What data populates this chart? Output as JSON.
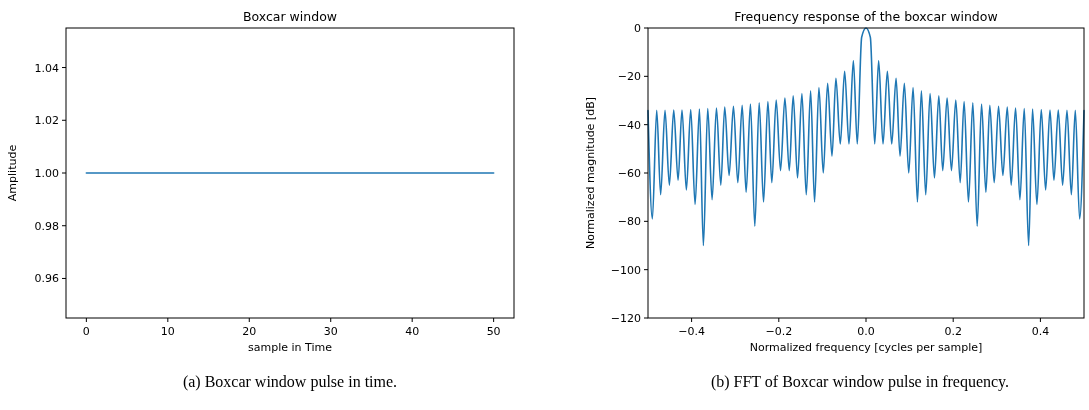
{
  "chart_data": [
    {
      "type": "line",
      "title": "Boxcar window",
      "xlabel": "sample in Time",
      "ylabel": "Amplitude",
      "annotations": [
        "(a) Boxcar window pulse in time."
      ],
      "x": [
        0,
        1,
        2,
        3,
        4,
        5,
        6,
        7,
        8,
        9,
        10,
        11,
        12,
        13,
        14,
        15,
        16,
        17,
        18,
        19,
        20,
        21,
        22,
        23,
        24,
        25,
        26,
        27,
        28,
        29,
        30,
        31,
        32,
        33,
        34,
        35,
        36,
        37,
        38,
        39,
        40,
        41,
        42,
        43,
        44,
        45,
        46,
        47,
        48,
        49,
        50
      ],
      "values": [
        1,
        1,
        1,
        1,
        1,
        1,
        1,
        1,
        1,
        1,
        1,
        1,
        1,
        1,
        1,
        1,
        1,
        1,
        1,
        1,
        1,
        1,
        1,
        1,
        1,
        1,
        1,
        1,
        1,
        1,
        1,
        1,
        1,
        1,
        1,
        1,
        1,
        1,
        1,
        1,
        1,
        1,
        1,
        1,
        1,
        1,
        1,
        1,
        1,
        1,
        1
      ],
      "color": "#1f77b4",
      "xlim": [
        -2.5,
        52.5
      ],
      "ylim": [
        0.945,
        1.055
      ],
      "xticks": [
        0,
        10,
        20,
        30,
        40,
        50
      ],
      "yticks": [
        0.96,
        0.98,
        {
          "value": 1,
          "label": "1.00"
        },
        1.02,
        1.04
      ]
    },
    {
      "type": "line",
      "title": "Frequency response of the boxcar window",
      "xlabel": "Normalized frequency [cycles per sample]",
      "ylabel": "Normalized magnitude [dB]",
      "annotations": [
        "(b) FFT of Boxcar window pulse in frequency."
      ],
      "x": [
        -0.5,
        -0.49,
        -0.48,
        -0.471,
        -0.461,
        -0.451,
        -0.441,
        -0.431,
        -0.422,
        -0.412,
        -0.402,
        -0.392,
        -0.382,
        -0.373,
        -0.363,
        -0.353,
        -0.343,
        -0.333,
        -0.324,
        -0.314,
        -0.304,
        -0.294,
        -0.284,
        -0.275,
        -0.265,
        -0.255,
        -0.245,
        -0.235,
        -0.225,
        -0.216,
        -0.206,
        -0.196,
        -0.186,
        -0.176,
        -0.167,
        -0.157,
        -0.147,
        -0.137,
        -0.127,
        -0.118,
        -0.108,
        -0.098,
        -0.088,
        -0.078,
        -0.069,
        -0.059,
        -0.049,
        -0.039,
        -0.029,
        -0.02,
        -0.01,
        0,
        0.01,
        0.02,
        0.029,
        0.039,
        0.049,
        0.059,
        0.069,
        0.078,
        0.088,
        0.098,
        0.108,
        0.118,
        0.127,
        0.137,
        0.147,
        0.157,
        0.167,
        0.176,
        0.186,
        0.196,
        0.206,
        0.216,
        0.225,
        0.235,
        0.245,
        0.255,
        0.265,
        0.275,
        0.284,
        0.294,
        0.304,
        0.314,
        0.324,
        0.333,
        0.343,
        0.353,
        0.363,
        0.373,
        0.382,
        0.392,
        0.402,
        0.412,
        0.422,
        0.431,
        0.441,
        0.451,
        0.461,
        0.471,
        0.48,
        0.49,
        0.5
      ],
      "values": [
        -34.2,
        -79,
        -34.1,
        -69,
        -34.1,
        -65,
        -34.0,
        -63,
        -33.9,
        -67,
        -33.7,
        -73,
        -33.5,
        -90,
        -33.3,
        -71,
        -33.1,
        -65,
        -32.7,
        -61,
        -32.4,
        -64,
        -32.0,
        -68,
        -31.5,
        -82,
        -31.0,
        -72,
        -30.4,
        -64,
        -29.8,
        -59,
        -29.0,
        -59,
        -28.1,
        -62,
        -27.1,
        -69,
        -26.0,
        -72,
        -24.6,
        -60,
        -22.9,
        -53,
        -20.8,
        -48,
        -17.9,
        -48,
        -13.5,
        -48,
        -3.9,
        0,
        -3.9,
        -48,
        -13.5,
        -48,
        -17.9,
        -48,
        -20.8,
        -53,
        -22.9,
        -60,
        -24.6,
        -72,
        -26.0,
        -69,
        -27.1,
        -62,
        -28.1,
        -59,
        -29.0,
        -59,
        -29.8,
        -64,
        -30.4,
        -72,
        -31.0,
        -82,
        -31.5,
        -68,
        -32.0,
        -64,
        -32.4,
        -61,
        -32.7,
        -65,
        -33.1,
        -71,
        -33.3,
        -90,
        -33.5,
        -73,
        -33.7,
        -67,
        -33.9,
        -63,
        -34.0,
        -65,
        -34.1,
        -69,
        -34.1,
        -79,
        -34.2
      ],
      "color": "#1f77b4",
      "xlim": [
        -0.5,
        0.5
      ],
      "ylim": [
        -120,
        0
      ],
      "xticks": [
        {
          "value": -0.4,
          "label": "−0.4"
        },
        {
          "value": -0.2,
          "label": "−0.2"
        },
        {
          "value": 0,
          "label": "0.0"
        },
        0.2,
        0.4
      ],
      "yticks": [
        {
          "value": -120,
          "label": "−120"
        },
        {
          "value": -100,
          "label": "−100"
        },
        {
          "value": -80,
          "label": "−80"
        },
        {
          "value": -60,
          "label": "−60"
        },
        {
          "value": -40,
          "label": "−40"
        },
        {
          "value": -20,
          "label": "−20"
        },
        0
      ]
    }
  ]
}
